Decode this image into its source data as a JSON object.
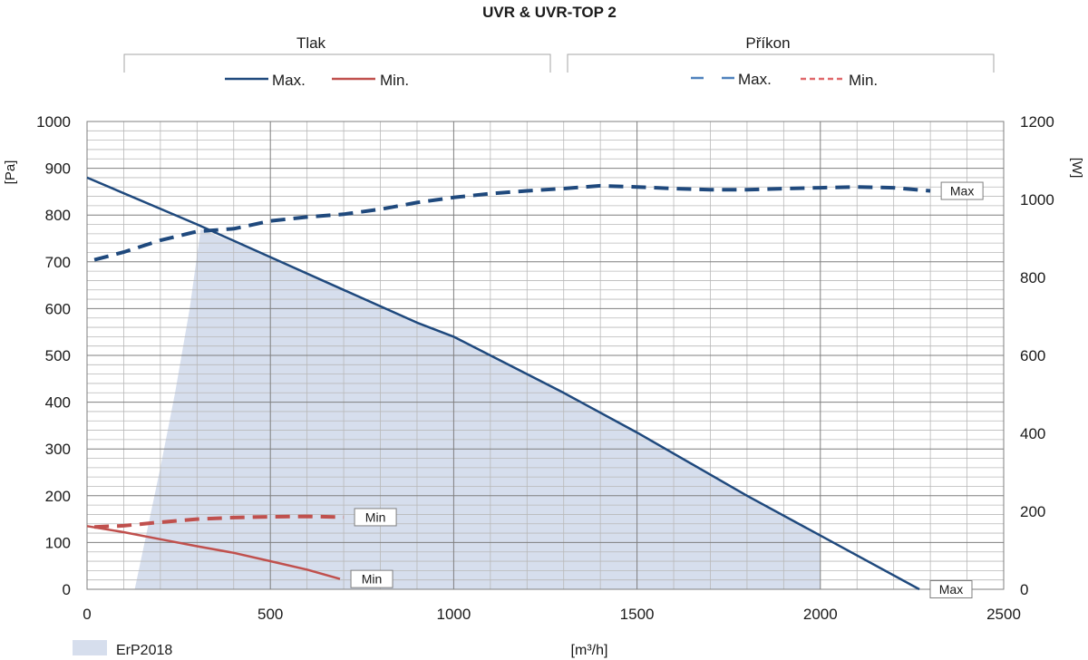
{
  "chart_data": {
    "type": "line",
    "title": "UVR & UVR-TOP 2",
    "xlabel": "[m³/h]",
    "ylabel_left": "[Pa]",
    "ylabel_right": "[W]",
    "xlim": [
      0,
      2500
    ],
    "ylim_left": [
      0,
      1000
    ],
    "ylim_right": [
      0,
      1200
    ],
    "x_ticks": [
      0,
      500,
      1000,
      1500,
      2000,
      2500
    ],
    "y_ticks_left": [
      0,
      100,
      200,
      300,
      400,
      500,
      600,
      700,
      800,
      900,
      1000
    ],
    "y_ticks_right": [
      0,
      200,
      400,
      600,
      800,
      1000,
      1200
    ],
    "grid": true,
    "legend_groups": [
      {
        "title": "Tlak",
        "entries": [
          {
            "label": "Max.",
            "style": "solid",
            "color": "#1f497d"
          },
          {
            "label": "Min.",
            "style": "solid",
            "color": "#c0504d"
          }
        ]
      },
      {
        "title": "Příkon",
        "entries": [
          {
            "label": "Max.",
            "style": "dashed",
            "color": "#4f81bd"
          },
          {
            "label": "Min.",
            "style": "dashed",
            "color": "#e0686b"
          }
        ]
      }
    ],
    "area_legend": {
      "label": "ErP2018",
      "color": "#d6deed"
    },
    "series": [
      {
        "name": "Tlak Max.",
        "axis": "left",
        "style": "solid",
        "color": "#1f497d",
        "x": [
          0,
          300,
          500,
          700,
          900,
          1000,
          1300,
          1500,
          1800,
          2000,
          2270
        ],
        "y": [
          880,
          780,
          710,
          640,
          570,
          540,
          420,
          335,
          200,
          115,
          0
        ],
        "end_label": "Max"
      },
      {
        "name": "Tlak Min.",
        "axis": "left",
        "style": "solid",
        "color": "#c0504d",
        "x": [
          0,
          100,
          200,
          300,
          400,
          500,
          600,
          690
        ],
        "y": [
          135,
          122,
          107,
          92,
          78,
          60,
          42,
          22
        ],
        "end_label": "Min"
      },
      {
        "name": "Příkon Max.",
        "axis": "right",
        "style": "dashed",
        "color": "#1f497d",
        "x": [
          20,
          100,
          200,
          300,
          400,
          500,
          600,
          700,
          800,
          900,
          1000,
          1100,
          1200,
          1300,
          1400,
          1500,
          1600,
          1700,
          1800,
          1900,
          2000,
          2100,
          2200,
          2300
        ],
        "y": [
          845,
          865,
          895,
          918,
          925,
          945,
          955,
          962,
          975,
          992,
          1005,
          1015,
          1022,
          1028,
          1035,
          1032,
          1028,
          1025,
          1025,
          1028,
          1030,
          1032,
          1030,
          1022
        ],
        "end_label": "Max"
      },
      {
        "name": "Příkon Min.",
        "axis": "right",
        "style": "dashed",
        "color": "#c0504d",
        "x": [
          20,
          100,
          200,
          300,
          400,
          500,
          600,
          700
        ],
        "y": [
          160,
          163,
          172,
          180,
          184,
          186,
          187,
          185
        ],
        "end_label": "Min"
      }
    ],
    "areas": [
      {
        "name": "ErP2018",
        "axis": "left",
        "color": "#d6deed",
        "polygon_x": [
          130,
          200,
          240,
          280,
          310,
          500,
          700,
          900,
          1000,
          1300,
          1500,
          1800,
          2000,
          2000,
          130
        ],
        "polygon_y": [
          0,
          260,
          420,
          600,
          770,
          710,
          640,
          570,
          540,
          420,
          335,
          200,
          115,
          0,
          0
        ]
      }
    ]
  }
}
